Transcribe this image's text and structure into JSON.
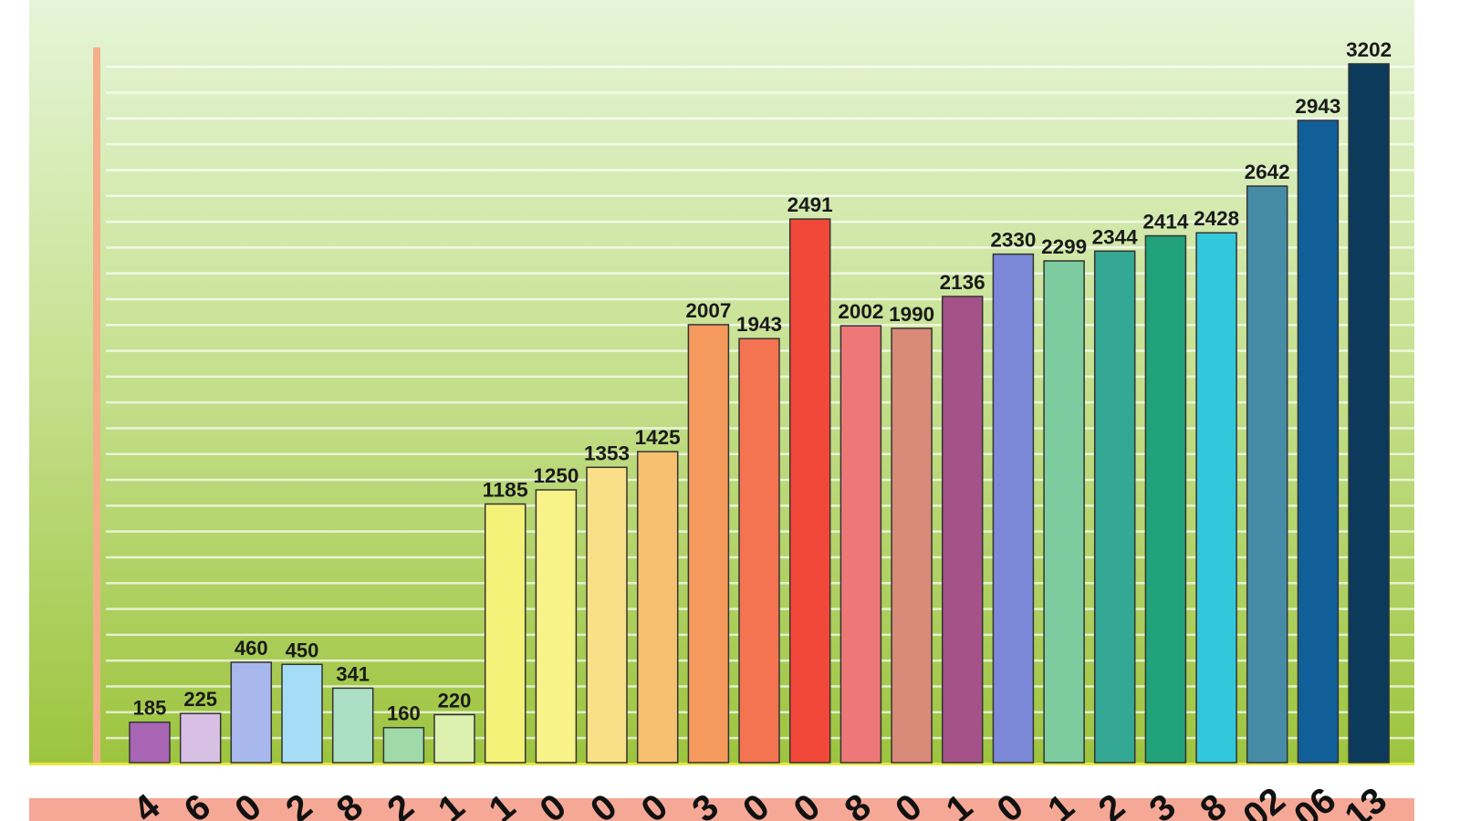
{
  "chart_data": {
    "type": "bar",
    "title": "",
    "xlabel": "",
    "ylabel": "",
    "ylim": [
      0,
      3202
    ],
    "grid": true,
    "legend": "none",
    "categories": [
      "4",
      "6",
      "0",
      "2",
      "8",
      "2",
      "1",
      "1",
      "0",
      "0",
      "0",
      "3",
      "0",
      "0",
      "8",
      "0",
      "1",
      "0",
      "1",
      "2",
      "3",
      "8",
      "02",
      "06",
      "13"
    ],
    "values": [
      185,
      225,
      460,
      450,
      341,
      160,
      220,
      1185,
      1250,
      1353,
      1425,
      2007,
      1943,
      2491,
      2002,
      1990,
      2136,
      2330,
      2299,
      2344,
      2414,
      2428,
      2642,
      2943,
      3202
    ],
    "colors": [
      "#a866b4",
      "#d8bfe4",
      "#a9b8ec",
      "#a6ddf6",
      "#ace0c4",
      "#9fdaa8",
      "#dcf0b0",
      "#f5f27a",
      "#f8f288",
      "#f9e088",
      "#f7c070",
      "#f59a5c",
      "#f47452",
      "#f2483a",
      "#ee7878",
      "#d98a78",
      "#a45288",
      "#7c88d8",
      "#7ccca0",
      "#34a894",
      "#22a27a",
      "#32c8dc",
      "#468ca6",
      "#125e98",
      "#0c3a5a"
    ],
    "background": {
      "top": "#e6f5d8",
      "bottom": "#9dc43e",
      "axis_line": "#f4b08a",
      "bottom_strip": "#f6a896"
    }
  }
}
